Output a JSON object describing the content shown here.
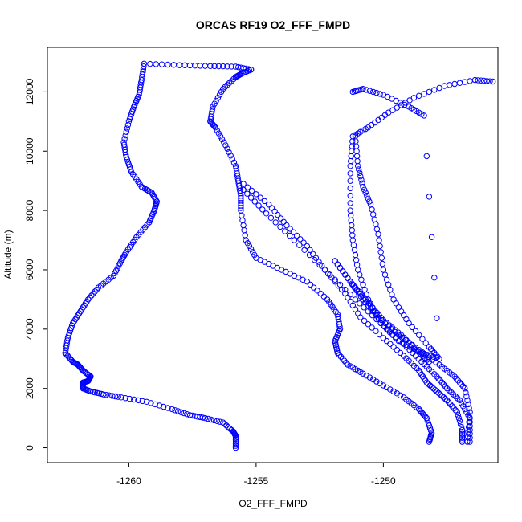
{
  "chart_data": {
    "type": "scatter",
    "title": "ORCAS RF19 O2_FFF_FMPD",
    "xlabel": "O2_FFF_FMPD",
    "ylabel": "Altitude (m)",
    "xlim": [
      -1263.2,
      -1245.5
    ],
    "ylim": [
      -500,
      13500
    ],
    "x_ticks": [
      -1260,
      -1255,
      -1250
    ],
    "x_tick_labels": [
      "-1260",
      "-1255",
      "-1250"
    ],
    "y_ticks": [
      0,
      2000,
      4000,
      6000,
      8000,
      10000,
      12000
    ],
    "y_tick_labels": [
      "0",
      "2000",
      "4000",
      "6000",
      "8000",
      "10000",
      "12000"
    ],
    "grid": false,
    "legend": "none",
    "marker": "open-circle",
    "color": "#0000ff",
    "series": [
      {
        "x": [
          -1255.8,
          -1255.8,
          -1255.9,
          -1256.3,
          -1257.0,
          -1257.6,
          -1258.3,
          -1259.3,
          -1260.3,
          -1261.0,
          -1261.5,
          -1261.8,
          -1261.8,
          -1261.6,
          -1261.5,
          -1261.8,
          -1262.0,
          -1262.2,
          -1262.5,
          -1262.4,
          -1262.2,
          -1261.9,
          -1261.6,
          -1261.2,
          -1260.6,
          -1260.3,
          -1260.1,
          -1259.7,
          -1259.2,
          -1259.0,
          -1258.9,
          -1259.1,
          -1259.5,
          -1259.9,
          -1260.1,
          -1260.2,
          -1260.0,
          -1259.8,
          -1259.6,
          -1259.5,
          -1259.4,
          -1258.0,
          -1256.8,
          -1255.8,
          -1255.2
        ],
        "y": [
          0,
          400,
          550,
          850,
          1000,
          1100,
          1300,
          1550,
          1700,
          1800,
          1900,
          2000,
          2200,
          2250,
          2400,
          2600,
          2800,
          2900,
          3200,
          3700,
          4200,
          4600,
          5000,
          5400,
          5800,
          6300,
          6600,
          7100,
          7600,
          8000,
          8300,
          8600,
          8800,
          9300,
          9800,
          10300,
          11000,
          11500,
          11900,
          12400,
          12950,
          12900,
          12870,
          12850,
          12750
        ]
      },
      {
        "x": [
          -1255.2,
          -1255.6,
          -1255.8,
          -1256.3,
          -1256.7,
          -1256.8,
          -1256.6,
          -1256.2,
          -1255.8,
          -1255.7,
          -1255.6,
          -1255.6,
          -1255.4,
          -1255.0,
          -1254.0,
          -1253.0,
          -1252.2,
          -1251.8,
          -1251.7,
          -1251.9,
          -1251.8,
          -1251.4,
          -1250.8,
          -1250.0,
          -1249.2,
          -1248.6,
          -1248.3,
          -1248.1,
          -1248.2
        ],
        "y": [
          12750,
          12600,
          12500,
          12100,
          11500,
          11000,
          10800,
          10200,
          9500,
          9000,
          8500,
          8000,
          7000,
          6400,
          6000,
          5600,
          5000,
          4500,
          4000,
          3600,
          3200,
          2800,
          2500,
          2100,
          1700,
          1300,
          1000,
          500,
          200
        ]
      },
      {
        "x": [
          -1255.5,
          -1254.5,
          -1253.8,
          -1253.0,
          -1252.3,
          -1251.5,
          -1250.9,
          -1250.0,
          -1249.2,
          -1248.6,
          -1248.3,
          -1247.9,
          -1247.5,
          -1247.1,
          -1246.9,
          -1246.9
        ],
        "y": [
          8900,
          8200,
          7500,
          6800,
          6000,
          5200,
          4400,
          3700,
          3100,
          2600,
          2200,
          1900,
          1600,
          1200,
          600,
          200
        ]
      },
      {
        "x": [
          -1255.5,
          -1254.6,
          -1253.5,
          -1252.3,
          -1251.1,
          -1250.1,
          -1249.2,
          -1248.5,
          -1247.9,
          -1247.5,
          -1247.0,
          -1246.6,
          -1246.6
        ],
        "y": [
          8700,
          7900,
          7000,
          6000,
          5000,
          4200,
          3500,
          2900,
          2400,
          2000,
          1600,
          1000,
          200
        ]
      },
      {
        "x": [
          -1251.9,
          -1251.3,
          -1250.8,
          -1250.2,
          -1249.4,
          -1248.6,
          -1247.8,
          -1247.2,
          -1246.8,
          -1246.6,
          -1246.7
        ],
        "y": [
          6300,
          5600,
          5000,
          4400,
          3800,
          3300,
          2800,
          2400,
          2000,
          1200,
          200
        ]
      },
      {
        "x": [
          -1251.9,
          -1251.3,
          -1250.9,
          -1250.5,
          -1250.0,
          -1249.3,
          -1248.7,
          -1248.2
        ],
        "y": [
          6300,
          5600,
          5200,
          4800,
          4300,
          3800,
          3300,
          2900
        ]
      },
      {
        "x": [
          -1247.8,
          -1248.5,
          -1249.4,
          -1250.1,
          -1250.6,
          -1251.0,
          -1251.2,
          -1251.3,
          -1251.3,
          -1251.2,
          -1250.6,
          -1249.8,
          -1248.8,
          -1247.6,
          -1246.4,
          -1245.7
        ],
        "y": [
          3000,
          3200,
          3600,
          4200,
          5000,
          6000,
          7000,
          8000,
          9500,
          10500,
          10800,
          11300,
          11800,
          12200,
          12400,
          12350
        ]
      },
      {
        "x": [
          -1251.1,
          -1251.0,
          -1250.8,
          -1250.5,
          -1250.2,
          -1250.0,
          -1249.6,
          -1249.0,
          -1248.2,
          -1247.8,
          -1248.4,
          -1249.0,
          -1250.0,
          -1250.8,
          -1251.2
        ],
        "y": [
          10500,
          9500,
          8800,
          8200,
          7200,
          6000,
          5000,
          4200,
          3400,
          3000,
          11200,
          11500,
          11900,
          12100,
          12000
        ]
      }
    ]
  }
}
